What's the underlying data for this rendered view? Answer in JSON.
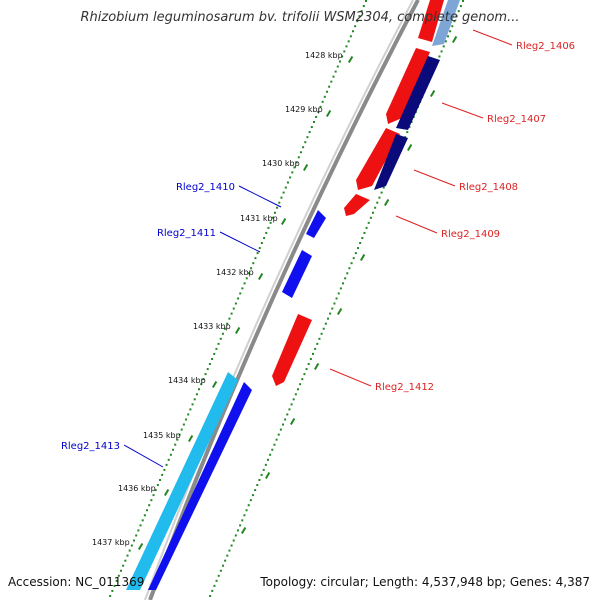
{
  "title": "Rhizobium leguminosarum bv. trifolii WSM2304, complete genom...",
  "accession": "Accession: NC_011369",
  "summary": "Topology: circular; Length: 4,537,948 bp; Genes: 4,387",
  "kbp_labels": [
    "1428 kbp",
    "1429 kbp",
    "1430 kbp",
    "1431 kbp",
    "1432 kbp",
    "1433 kbp",
    "1434 kbp",
    "1435 kbp",
    "1436 kbp",
    "1437 kbp"
  ],
  "genes": [
    {
      "label": "Rleg2_1406",
      "strand": "reverse",
      "color": "#dd2222"
    },
    {
      "label": "Rleg2_1407",
      "strand": "reverse",
      "color": "#dd2222"
    },
    {
      "label": "Rleg2_1408",
      "strand": "reverse",
      "color": "#dd2222"
    },
    {
      "label": "Rleg2_1409",
      "strand": "reverse",
      "color": "#dd2222"
    },
    {
      "label": "Rleg2_1410",
      "strand": "forward",
      "color": "#0000cc"
    },
    {
      "label": "Rleg2_1411",
      "strand": "forward",
      "color": "#0000cc"
    },
    {
      "label": "Rleg2_1412",
      "strand": "reverse",
      "color": "#dd2222"
    },
    {
      "label": "Rleg2_1413",
      "strand": "forward",
      "color": "#0000cc"
    }
  ],
  "colors": {
    "forward_cds": "#1010ee",
    "reverse_cds": "#ee1111",
    "forward_other": "#22bbee",
    "reverse_other": "#0a0a7a",
    "backbone": "#888888",
    "tick": "#228822"
  }
}
